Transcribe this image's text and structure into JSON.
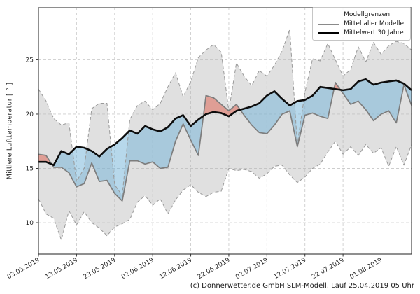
{
  "chart": {
    "y_axis_label": "Mittlere Lufttemperatur [ ° ]",
    "caption": "(c) Donnerwetter.de GmbH SLM-Modell, Lauf 25.04.2019 05 Uhr",
    "legend": [
      "Modellgrenzen",
      "Mittel aller Modelle",
      "Mittelwert 30 Jahre"
    ],
    "colors": {
      "band_fill": "rgba(186,186,186,0.45)",
      "band_edge": "#999999",
      "model_mean_line": "#7d7d7d",
      "mean30_line": "#0d0d0d",
      "warm_fill": "rgba(222,104,88,0.55)",
      "cool_fill": "rgba(112,178,216,0.5)",
      "grid": "#cdcdcd",
      "spine": "#333333",
      "tick_text": "#262626"
    }
  },
  "chart_data": {
    "type": "line",
    "title": "",
    "xlabel": "",
    "ylabel": "Mittlere Lufttemperatur [ ° ]",
    "x_start_date": "03.05.2019",
    "x_unit": "days since first date",
    "x_tick_days": [
      0,
      10,
      20,
      30,
      40,
      50,
      60,
      70,
      80,
      90
    ],
    "x_tick_labels": [
      "03.05.2019",
      "13.05.2019",
      "23.05.2019",
      "02.06.2019",
      "12.06.2019",
      "22.06.2019",
      "02.07.2019",
      "12.07.2019",
      "22.07.2019",
      "01.08.2019"
    ],
    "y_ticks": [
      10,
      15,
      20,
      25
    ],
    "xlim": [
      0,
      98
    ],
    "ylim": [
      7.1,
      29.8
    ],
    "grid": true,
    "legend_position": "upper right",
    "x_days": [
      0,
      2,
      4,
      6,
      8,
      10,
      12,
      14,
      16,
      18,
      20,
      22,
      24,
      26,
      28,
      30,
      32,
      34,
      36,
      38,
      40,
      42,
      44,
      46,
      48,
      50,
      52,
      54,
      56,
      58,
      60,
      62,
      64,
      66,
      68,
      70,
      72,
      74,
      76,
      78,
      80,
      82,
      84,
      86,
      88,
      90,
      92,
      94,
      96,
      98
    ],
    "series": [
      {
        "name": "Modellgrenzen (oberes Modellband)",
        "role": "band_max",
        "values": [
          22.3,
          21.2,
          19.6,
          19.0,
          19.2,
          13.8,
          15.0,
          20.5,
          21.0,
          21.0,
          13.5,
          12.5,
          19.5,
          20.8,
          21.2,
          20.4,
          21.0,
          22.5,
          23.8,
          21.6,
          23.0,
          25.2,
          25.9,
          26.4,
          25.7,
          20.3,
          24.7,
          23.5,
          22.6,
          24.0,
          23.5,
          24.5,
          25.8,
          27.8,
          17.2,
          22.0,
          25.1,
          24.9,
          26.5,
          25.0,
          23.5,
          24.1,
          26.2,
          24.8,
          26.6,
          25.5,
          26.3,
          26.7,
          26.5,
          25.9
        ]
      },
      {
        "name": "Modellgrenzen (unteres Modellband)",
        "role": "band_min",
        "values": [
          12.2,
          10.8,
          10.4,
          8.4,
          11.1,
          9.8,
          11.0,
          10.0,
          9.5,
          8.8,
          9.6,
          9.9,
          10.3,
          11.9,
          12.5,
          11.6,
          12.2,
          10.8,
          12.1,
          13.0,
          13.5,
          12.8,
          12.4,
          12.8,
          12.9,
          15.0,
          14.8,
          14.9,
          14.7,
          14.1,
          14.5,
          15.2,
          15.3,
          14.4,
          13.7,
          14.2,
          15.0,
          15.4,
          16.5,
          17.5,
          16.3,
          17.0,
          16.2,
          17.2,
          16.4,
          16.9,
          15.2,
          17.0,
          15.3,
          17.2
        ]
      },
      {
        "name": "Mittel aller Modelle",
        "role": "model_mean",
        "values": [
          16.3,
          16.2,
          15.1,
          15.1,
          14.6,
          13.3,
          13.6,
          15.5,
          13.8,
          13.9,
          12.7,
          12.0,
          15.7,
          15.7,
          15.4,
          15.6,
          15.0,
          15.1,
          17.5,
          19.1,
          17.6,
          16.2,
          21.7,
          21.5,
          20.9,
          20.3,
          20.9,
          19.9,
          19.0,
          18.3,
          18.2,
          19.0,
          20.0,
          20.3,
          17.0,
          19.9,
          20.1,
          19.8,
          19.6,
          22.9,
          21.9,
          20.9,
          21.2,
          20.4,
          19.4,
          20.0,
          20.3,
          19.2,
          22.7,
          20.8
        ]
      },
      {
        "name": "Mittelwert 30 Jahre",
        "role": "mean_30y",
        "values": [
          15.6,
          15.6,
          15.3,
          16.6,
          16.3,
          17.0,
          16.9,
          16.6,
          16.1,
          16.8,
          17.2,
          17.8,
          18.5,
          18.2,
          18.9,
          18.6,
          18.4,
          18.8,
          19.6,
          19.9,
          18.9,
          19.5,
          20.0,
          20.2,
          20.1,
          19.8,
          20.3,
          20.5,
          20.7,
          21.0,
          21.7,
          22.1,
          21.4,
          20.8,
          21.2,
          21.3,
          21.7,
          22.5,
          22.4,
          22.3,
          22.2,
          22.3,
          23.0,
          23.2,
          22.7,
          22.9,
          23.0,
          23.1,
          22.8,
          22.2
        ]
      }
    ]
  }
}
